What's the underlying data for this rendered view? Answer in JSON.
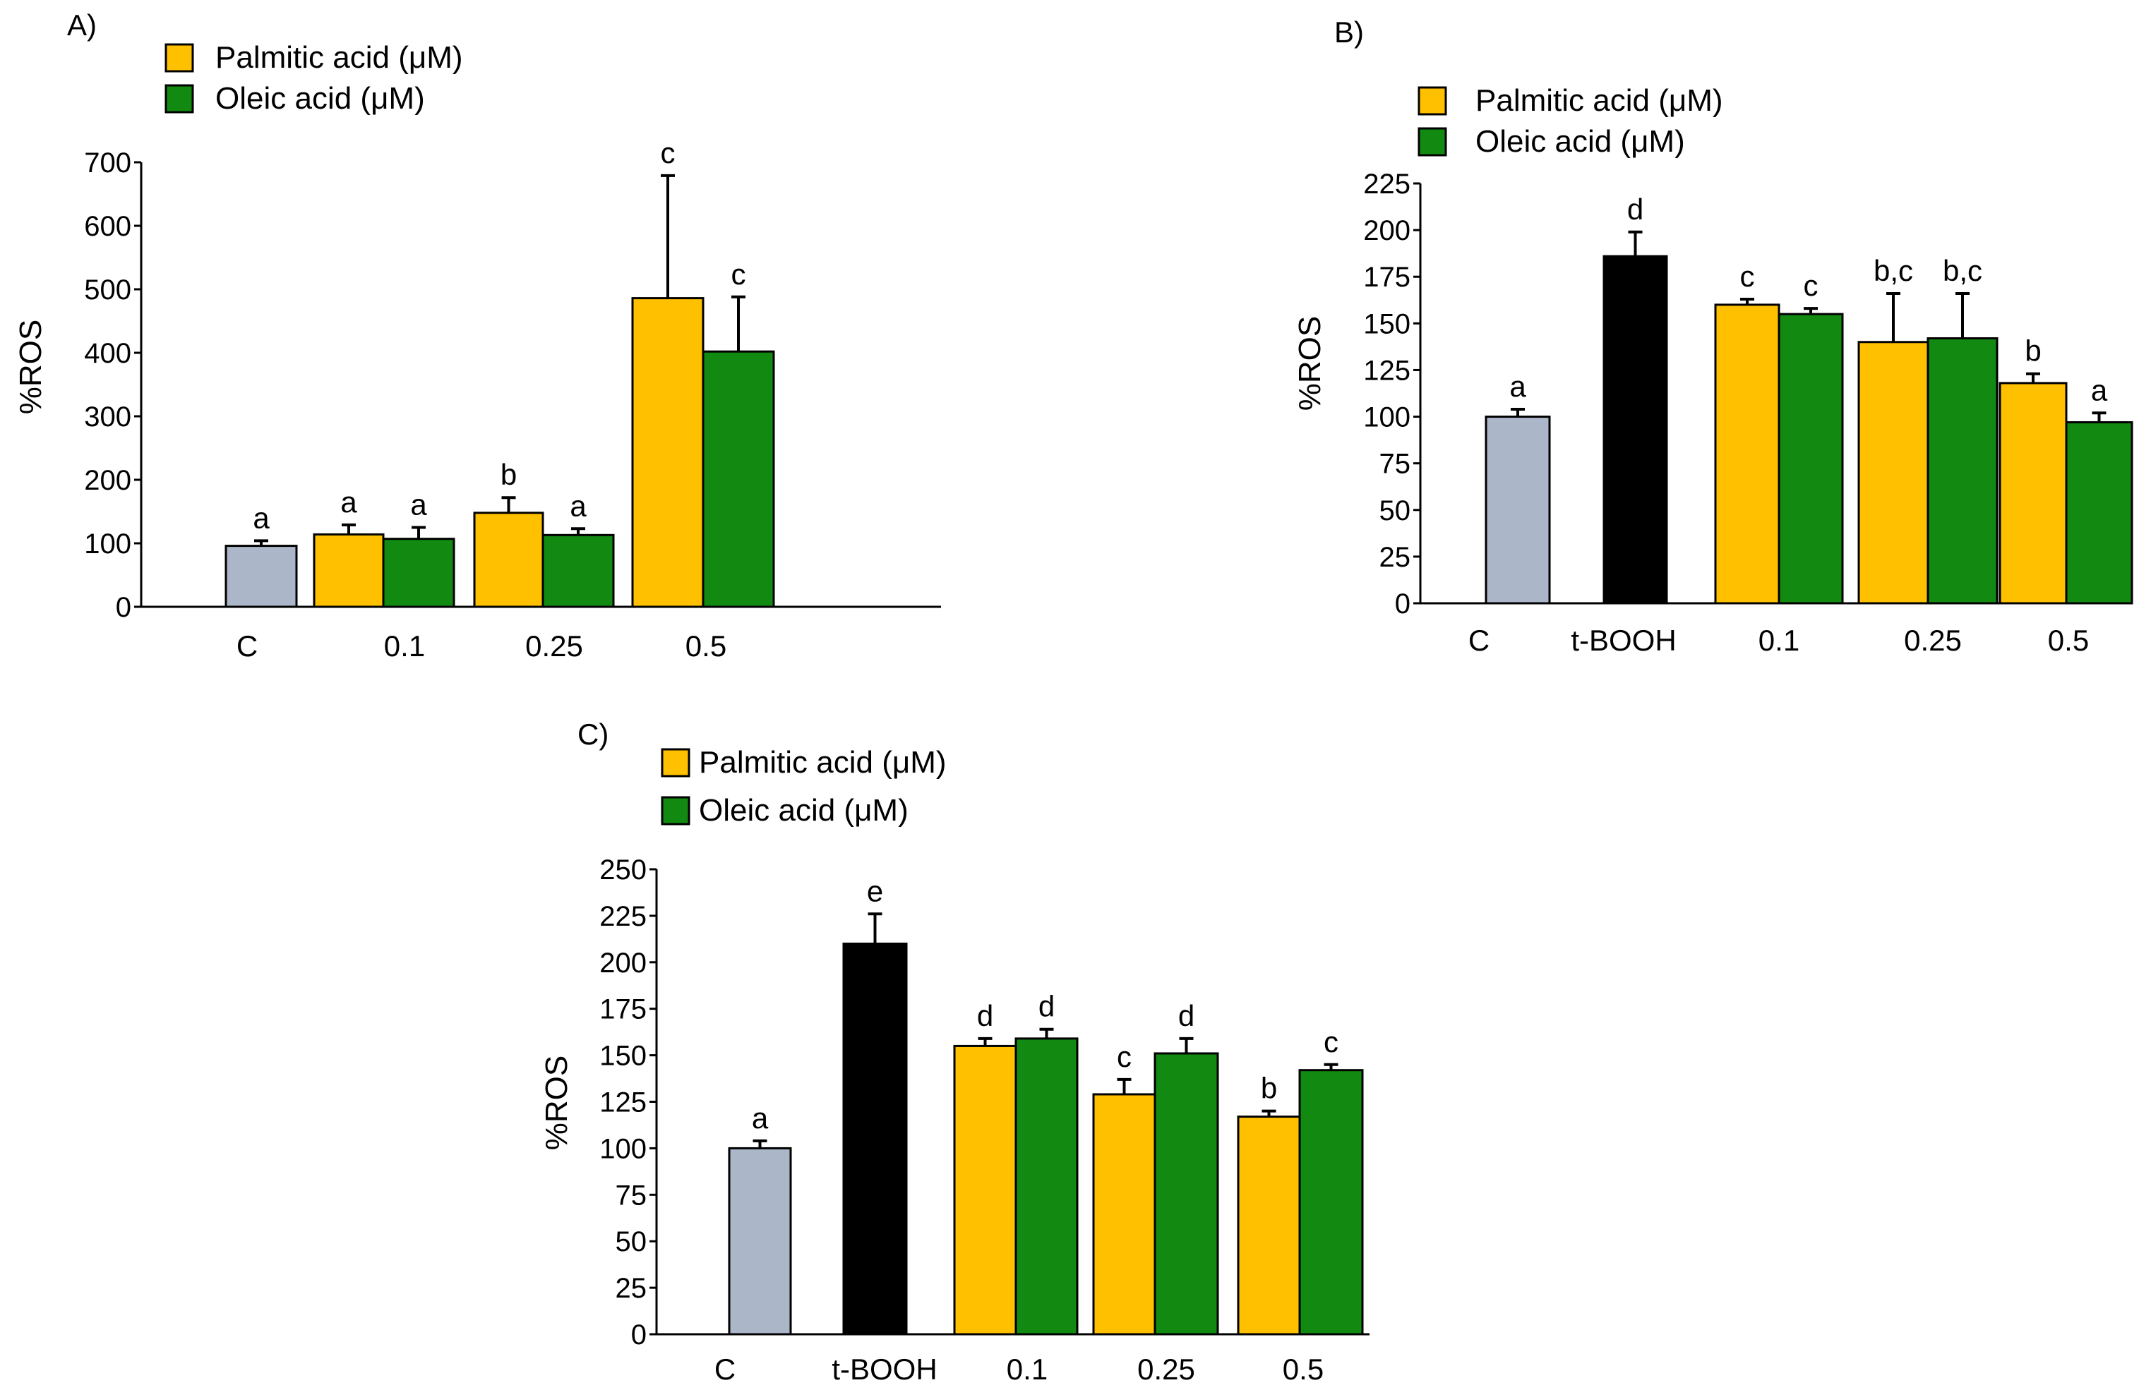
{
  "colors": {
    "control": "#abb6c9",
    "tbooh": "#000000",
    "palmitic": "#ffc000",
    "oleic": "#128a12"
  },
  "chart_data": [
    {
      "panel_label": "A)",
      "type": "bar",
      "ylabel": "%ROS",
      "xlabel": "",
      "ylim": [
        0,
        700
      ],
      "yticks": [
        "0",
        "100",
        "200",
        "300",
        "400",
        "500",
        "600",
        "700"
      ],
      "categories": [
        "C",
        "0.1",
        "0.25",
        "0.5"
      ],
      "legend": [
        {
          "label": "Palmitic acid  (μM)",
          "color": "palmitic"
        },
        {
          "label": "Oleic acid (μM)",
          "color": "oleic"
        }
      ],
      "bars": [
        {
          "category": "C",
          "series": "Control",
          "color": "control",
          "value": 96,
          "error": 8,
          "letter": "a"
        },
        {
          "category": "0.1",
          "series": "Palmitic acid",
          "color": "palmitic",
          "value": 114,
          "error": 15,
          "letter": "a"
        },
        {
          "category": "0.1",
          "series": "Oleic acid",
          "color": "oleic",
          "value": 107,
          "error": 18,
          "letter": "a"
        },
        {
          "category": "0.25",
          "series": "Palmitic acid",
          "color": "palmitic",
          "value": 148,
          "error": 24,
          "letter": "b"
        },
        {
          "category": "0.25",
          "series": "Oleic acid",
          "color": "oleic",
          "value": 113,
          "error": 10,
          "letter": "a"
        },
        {
          "category": "0.5",
          "series": "Palmitic acid",
          "color": "palmitic",
          "value": 486,
          "error": 193,
          "letter": "c"
        },
        {
          "category": "0.5",
          "series": "Oleic acid",
          "color": "oleic",
          "value": 402,
          "error": 86,
          "letter": "c"
        }
      ]
    },
    {
      "panel_label": "B)",
      "type": "bar",
      "ylabel": "%ROS",
      "xlabel": "",
      "ylim": [
        0,
        225
      ],
      "yticks": [
        "0",
        "25",
        "50",
        "75",
        "100",
        "125",
        "150",
        "175",
        "200",
        "225"
      ],
      "categories": [
        "C",
        "t-BOOH",
        "0.1",
        "0.25",
        "0.5"
      ],
      "legend": [
        {
          "label": "Palmitic acid  (μM)",
          "color": "palmitic"
        },
        {
          "label": "Oleic acid (μM)",
          "color": "oleic"
        }
      ],
      "bars": [
        {
          "category": "C",
          "series": "Control",
          "color": "control",
          "value": 100,
          "error": 4,
          "letter": "a"
        },
        {
          "category": "t-BOOH",
          "series": "t-BOOH",
          "color": "tbooh",
          "value": 186,
          "error": 13,
          "letter": "d"
        },
        {
          "category": "0.1",
          "series": "Palmitic acid",
          "color": "palmitic",
          "value": 160,
          "error": 3,
          "letter": "c"
        },
        {
          "category": "0.1",
          "series": "Oleic acid",
          "color": "oleic",
          "value": 155,
          "error": 3,
          "letter": "c"
        },
        {
          "category": "0.25",
          "series": "Palmitic acid",
          "color": "palmitic",
          "value": 140,
          "error": 26,
          "letter": "b,c"
        },
        {
          "category": "0.25",
          "series": "Oleic acid",
          "color": "oleic",
          "value": 142,
          "error": 24,
          "letter": "b,c"
        },
        {
          "category": "0.5",
          "series": "Palmitic acid",
          "color": "palmitic",
          "value": 118,
          "error": 5,
          "letter": "b"
        },
        {
          "category": "0.5",
          "series": "Oleic acid",
          "color": "oleic",
          "value": 97,
          "error": 5,
          "letter": "a"
        }
      ]
    },
    {
      "panel_label": "C)",
      "type": "bar",
      "ylabel": "%ROS",
      "xlabel": "",
      "ylim": [
        0,
        250
      ],
      "yticks": [
        "0",
        "25",
        "50",
        "75",
        "100",
        "125",
        "150",
        "175",
        "200",
        "225",
        "250"
      ],
      "categories": [
        "C",
        "t-BOOH",
        "0.1",
        "0.25",
        "0.5"
      ],
      "legend": [
        {
          "label": "Palmitic acid  (μM)",
          "color": "palmitic"
        },
        {
          "label": "Oleic acid (μM)",
          "color": "oleic"
        }
      ],
      "bars": [
        {
          "category": "C",
          "series": "Control",
          "color": "control",
          "value": 100,
          "error": 4,
          "letter": "a"
        },
        {
          "category": "t-BOOH",
          "series": "t-BOOH",
          "color": "tbooh",
          "value": 210,
          "error": 16,
          "letter": "e"
        },
        {
          "category": "0.1",
          "series": "Palmitic acid",
          "color": "palmitic",
          "value": 155,
          "error": 4,
          "letter": "d"
        },
        {
          "category": "0.1",
          "series": "Oleic acid",
          "color": "oleic",
          "value": 159,
          "error": 5,
          "letter": "d"
        },
        {
          "category": "0.25",
          "series": "Palmitic acid",
          "color": "palmitic",
          "value": 129,
          "error": 8,
          "letter": "c"
        },
        {
          "category": "0.25",
          "series": "Oleic acid",
          "color": "oleic",
          "value": 151,
          "error": 8,
          "letter": "d"
        },
        {
          "category": "0.5",
          "series": "Palmitic acid",
          "color": "palmitic",
          "value": 117,
          "error": 3,
          "letter": "b"
        },
        {
          "category": "0.5",
          "series": "Oleic acid",
          "color": "oleic",
          "value": 142,
          "error": 3,
          "letter": "c"
        }
      ]
    }
  ]
}
